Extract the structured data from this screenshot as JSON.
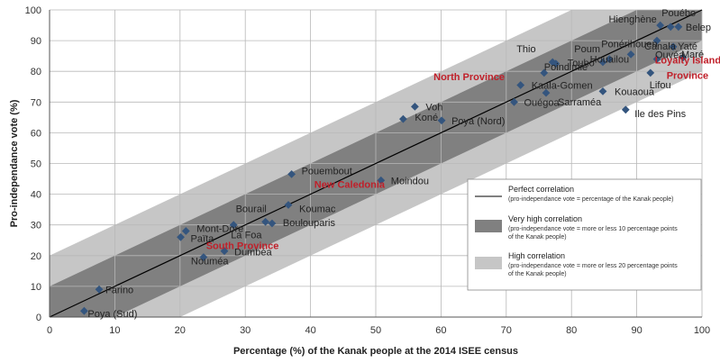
{
  "chart_data": {
    "type": "scatter",
    "title": "",
    "xlabel": "Percentage (%) of the Kanak people at the 2014 ISEE census",
    "ylabel": "Pro-independance vote (%)",
    "xlim": [
      0,
      100
    ],
    "ylim": [
      0,
      100
    ],
    "xticks": [
      0,
      10,
      20,
      30,
      40,
      50,
      60,
      70,
      80,
      90,
      100
    ],
    "yticks": [
      0,
      10,
      20,
      30,
      40,
      50,
      60,
      70,
      80,
      90,
      100
    ],
    "grid": true,
    "marker_color": "#34557e",
    "province_color": "#c0202a",
    "bands": [
      {
        "name": "High correlation",
        "offset": 20,
        "color": "#c6c6c6"
      },
      {
        "name": "Very high correlation",
        "offset": 10,
        "color": "#808080"
      }
    ],
    "points": [
      {
        "label": "Poya (Sud)",
        "x": 5.3,
        "y": 2
      },
      {
        "label": "Farino",
        "x": 7.6,
        "y": 9
      },
      {
        "label": "Nouméa",
        "x": 23.6,
        "y": 19.5
      },
      {
        "label": "Dumbéa",
        "x": 26.8,
        "y": 21.5
      },
      {
        "label": "Païta",
        "x": 20.1,
        "y": 26
      },
      {
        "label": "Mont-Dore",
        "x": 20.9,
        "y": 28
      },
      {
        "label": "La Foa",
        "x": 28.2,
        "y": 30
      },
      {
        "label": "Boulouparis",
        "x": 34.1,
        "y": 30.5
      },
      {
        "label": "Bourail",
        "x": 33.1,
        "y": 31
      },
      {
        "label": "Koumac",
        "x": 36.6,
        "y": 36.5
      },
      {
        "label": "Pouembout",
        "x": 37.1,
        "y": 46.5
      },
      {
        "label": "Moindou",
        "x": 50.8,
        "y": 44.5
      },
      {
        "label": "Koné",
        "x": 54.2,
        "y": 64.5
      },
      {
        "label": "Voh",
        "x": 56,
        "y": 68.5
      },
      {
        "label": "Poya (Nord)",
        "x": 60.1,
        "y": 64
      },
      {
        "label": "Ouégoa",
        "x": 71.2,
        "y": 70
      },
      {
        "label": "Sarraméa",
        "x": 76.1,
        "y": 73
      },
      {
        "label": "Kaala-Gomen",
        "x": 72.2,
        "y": 75.5
      },
      {
        "label": "Poindimié",
        "x": 75.8,
        "y": 79.5
      },
      {
        "label": "Thio",
        "x": 77.1,
        "y": 83
      },
      {
        "label": "Touho",
        "x": 77.6,
        "y": 82.5
      },
      {
        "label": "Poum",
        "x": 84.8,
        "y": 83
      },
      {
        "label": "Ponérihouen",
        "x": 85.8,
        "y": 84
      },
      {
        "label": "Houailou",
        "x": 89.1,
        "y": 85.5
      },
      {
        "label": "Kouaoua",
        "x": 84.8,
        "y": 73.5
      },
      {
        "label": "Ile des Pins",
        "x": 88.3,
        "y": 67.5
      },
      {
        "label": "Lifou",
        "x": 92.1,
        "y": 79.5
      },
      {
        "label": "Ouvéa",
        "x": 93.1,
        "y": 84
      },
      {
        "label": "Maré",
        "x": 97.1,
        "y": 84.5
      },
      {
        "label": "Yaté",
        "x": 95.6,
        "y": 88
      },
      {
        "label": "Canala",
        "x": 93.1,
        "y": 90
      },
      {
        "label": "Hienghène",
        "x": 93.6,
        "y": 95
      },
      {
        "label": "Pouébo",
        "x": 95.2,
        "y": 94.5
      },
      {
        "label": "Belep",
        "x": 96.4,
        "y": 94.5
      }
    ],
    "province_points": [
      {
        "label": "South Province",
        "x": 26.2,
        "y": 26
      },
      {
        "label": "New Caledonia",
        "x": 39.2,
        "y": 43.5
      },
      {
        "label": "North Province",
        "x": 70.3,
        "y": 76
      },
      {
        "label": "Loyalty Islands",
        "x": 93.6,
        "y": 82
      },
      {
        "label": "Province",
        "x": 93.6,
        "y": 82
      }
    ],
    "legend": {
      "placement": "bottom-right",
      "items": [
        {
          "key": "line",
          "title": "Perfect correlation",
          "sub": [
            "(pro-independance vote = percentage of the Kanak people)"
          ]
        },
        {
          "key": "very_high",
          "title": "Very high correlation",
          "sub": [
            "(pro-independance vote = more or less 10 percentage points",
            "of the Kanak people)"
          ]
        },
        {
          "key": "high",
          "title": "High correlation",
          "sub": [
            "(pro-independance vote = more or less 20 percentage points",
            "of the Kanak people)"
          ]
        }
      ]
    }
  }
}
